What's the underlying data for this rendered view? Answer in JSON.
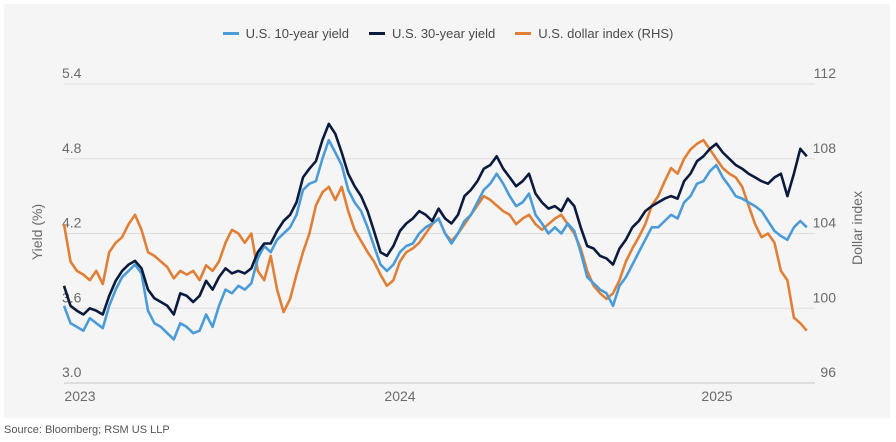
{
  "chart_data": {
    "type": "line",
    "title": "",
    "legend": {
      "position": "top-center",
      "entries": [
        {
          "name": "U.S. 10-year yield",
          "color": "#4a9bd8"
        },
        {
          "name": "U.S. 30-year yield",
          "color": "#0b1b3d"
        },
        {
          "name": "U.S. dollar index (RHS)",
          "color": "#e07f35"
        }
      ]
    },
    "xlabel": "",
    "ylabel": "Yield (%)",
    "y2label": "Dollar index",
    "ylim": [
      3.0,
      5.4
    ],
    "y2lim": [
      96,
      112
    ],
    "yticks": [
      "3.0",
      "3.6",
      "4.2",
      "4.8",
      "5.4"
    ],
    "y2ticks": [
      "96",
      "100",
      "104",
      "108",
      "112"
    ],
    "xticks": [
      {
        "label": "2023",
        "t": 0.0
      },
      {
        "label": "2024",
        "t": 1.0
      },
      {
        "label": "2025",
        "t": 2.0
      }
    ],
    "xlim": [
      0.0,
      2.31
    ],
    "grid": "horizontal",
    "x": [
      0.0,
      0.02,
      0.04,
      0.06,
      0.08,
      0.1,
      0.12,
      0.14,
      0.16,
      0.18,
      0.2,
      0.22,
      0.24,
      0.26,
      0.28,
      0.3,
      0.32,
      0.34,
      0.36,
      0.38,
      0.4,
      0.42,
      0.44,
      0.46,
      0.48,
      0.5,
      0.52,
      0.54,
      0.56,
      0.58,
      0.6,
      0.62,
      0.64,
      0.66,
      0.68,
      0.7,
      0.72,
      0.74,
      0.76,
      0.78,
      0.8,
      0.82,
      0.84,
      0.86,
      0.88,
      0.9,
      0.92,
      0.94,
      0.96,
      0.98,
      1.0,
      1.02,
      1.04,
      1.06,
      1.08,
      1.1,
      1.12,
      1.14,
      1.16,
      1.18,
      1.2,
      1.22,
      1.24,
      1.26,
      1.28,
      1.3,
      1.32,
      1.34,
      1.36,
      1.38,
      1.4,
      1.42,
      1.44,
      1.46,
      1.48,
      1.5,
      1.52,
      1.54,
      1.56,
      1.58,
      1.6,
      1.62,
      1.64,
      1.66,
      1.68,
      1.7,
      1.72,
      1.74,
      1.76,
      1.78,
      1.8,
      1.82,
      1.84,
      1.86,
      1.88,
      1.9,
      1.92,
      1.94,
      1.96,
      1.98,
      2.0,
      2.02,
      2.04,
      2.06,
      2.08,
      2.1,
      2.12,
      2.14,
      2.16,
      2.18,
      2.2,
      2.22,
      2.24,
      2.26,
      2.28,
      2.3
    ],
    "series": [
      {
        "name": "U.S. 10-year yield",
        "axis": "left",
        "values": [
          3.62,
          3.48,
          3.45,
          3.42,
          3.52,
          3.48,
          3.44,
          3.62,
          3.75,
          3.85,
          3.9,
          3.95,
          3.88,
          3.58,
          3.48,
          3.45,
          3.4,
          3.35,
          3.48,
          3.45,
          3.4,
          3.42,
          3.55,
          3.45,
          3.62,
          3.75,
          3.72,
          3.78,
          3.75,
          3.8,
          4.0,
          4.1,
          4.05,
          4.15,
          4.2,
          4.25,
          4.35,
          4.55,
          4.6,
          4.62,
          4.8,
          4.95,
          4.85,
          4.75,
          4.55,
          4.45,
          4.38,
          4.25,
          4.1,
          3.95,
          3.9,
          3.95,
          4.05,
          4.1,
          4.12,
          4.2,
          4.25,
          4.28,
          4.32,
          4.2,
          4.12,
          4.2,
          4.3,
          4.35,
          4.45,
          4.55,
          4.6,
          4.68,
          4.6,
          4.5,
          4.42,
          4.45,
          4.52,
          4.35,
          4.28,
          4.2,
          4.25,
          4.2,
          4.28,
          4.22,
          4.05,
          3.85,
          3.8,
          3.75,
          3.72,
          3.62,
          3.78,
          3.85,
          3.95,
          4.05,
          4.15,
          4.25,
          4.25,
          4.3,
          4.35,
          4.32,
          4.45,
          4.5,
          4.6,
          4.62,
          4.7,
          4.75,
          4.65,
          4.58,
          4.5,
          4.48,
          4.45,
          4.42,
          4.38,
          4.3,
          4.22,
          4.18,
          4.15,
          4.25,
          4.3,
          4.25
        ]
      },
      {
        "name": "U.S. 30-year yield",
        "axis": "left",
        "values": [
          3.78,
          3.62,
          3.58,
          3.55,
          3.6,
          3.58,
          3.55,
          3.7,
          3.82,
          3.9,
          3.95,
          3.98,
          3.92,
          3.75,
          3.68,
          3.65,
          3.62,
          3.55,
          3.72,
          3.7,
          3.65,
          3.7,
          3.82,
          3.75,
          3.85,
          3.92,
          3.88,
          3.9,
          3.88,
          3.92,
          4.05,
          4.12,
          4.12,
          4.22,
          4.3,
          4.35,
          4.45,
          4.65,
          4.72,
          4.78,
          4.95,
          5.08,
          5.0,
          4.85,
          4.68,
          4.58,
          4.5,
          4.38,
          4.22,
          4.05,
          4.02,
          4.1,
          4.22,
          4.28,
          4.32,
          4.38,
          4.35,
          4.3,
          4.4,
          4.32,
          4.28,
          4.35,
          4.5,
          4.55,
          4.62,
          4.72,
          4.75,
          4.82,
          4.72,
          4.65,
          4.58,
          4.62,
          4.68,
          4.52,
          4.45,
          4.4,
          4.42,
          4.38,
          4.48,
          4.42,
          4.25,
          4.1,
          4.08,
          4.02,
          4.0,
          3.95,
          4.08,
          4.15,
          4.25,
          4.3,
          4.38,
          4.42,
          4.45,
          4.48,
          4.5,
          4.48,
          4.62,
          4.68,
          4.78,
          4.82,
          4.88,
          4.92,
          4.85,
          4.8,
          4.75,
          4.72,
          4.68,
          4.65,
          4.62,
          4.6,
          4.65,
          4.68,
          4.5,
          4.68,
          4.88,
          4.82
        ]
      },
      {
        "name": "U.S. dollar index (RHS)",
        "axis": "right",
        "values": [
          104.5,
          102.5,
          102.0,
          101.8,
          101.5,
          102.0,
          101.3,
          103.0,
          103.5,
          103.8,
          104.5,
          105.0,
          104.2,
          103.0,
          102.8,
          102.5,
          102.2,
          101.6,
          102.0,
          101.8,
          102.0,
          101.5,
          102.3,
          102.0,
          102.5,
          103.5,
          104.2,
          104.0,
          103.5,
          104.0,
          102.0,
          101.5,
          102.8,
          101.0,
          99.8,
          100.5,
          101.8,
          103.0,
          104.0,
          105.5,
          106.2,
          106.5,
          105.8,
          106.5,
          105.2,
          104.2,
          103.6,
          103.0,
          102.5,
          101.8,
          101.2,
          101.5,
          102.5,
          103.0,
          103.2,
          103.5,
          104.0,
          104.5,
          104.8,
          104.0,
          103.6,
          104.0,
          104.5,
          105.0,
          105.5,
          106.0,
          105.8,
          105.5,
          105.2,
          105.0,
          104.5,
          104.8,
          105.0,
          104.5,
          104.2,
          104.5,
          104.8,
          105.0,
          104.5,
          104.0,
          103.2,
          102.0,
          101.2,
          100.8,
          100.5,
          100.8,
          101.5,
          102.5,
          103.2,
          103.8,
          104.5,
          105.5,
          106.0,
          106.8,
          107.5,
          107.2,
          108.0,
          108.5,
          108.8,
          109.0,
          108.5,
          108.0,
          107.5,
          107.2,
          107.0,
          106.5,
          105.5,
          104.5,
          103.8,
          104.0,
          103.5,
          102.0,
          101.5,
          99.5,
          99.2,
          98.8
        ]
      }
    ]
  },
  "source": "Source: Bloomberg; RSM US LLP"
}
